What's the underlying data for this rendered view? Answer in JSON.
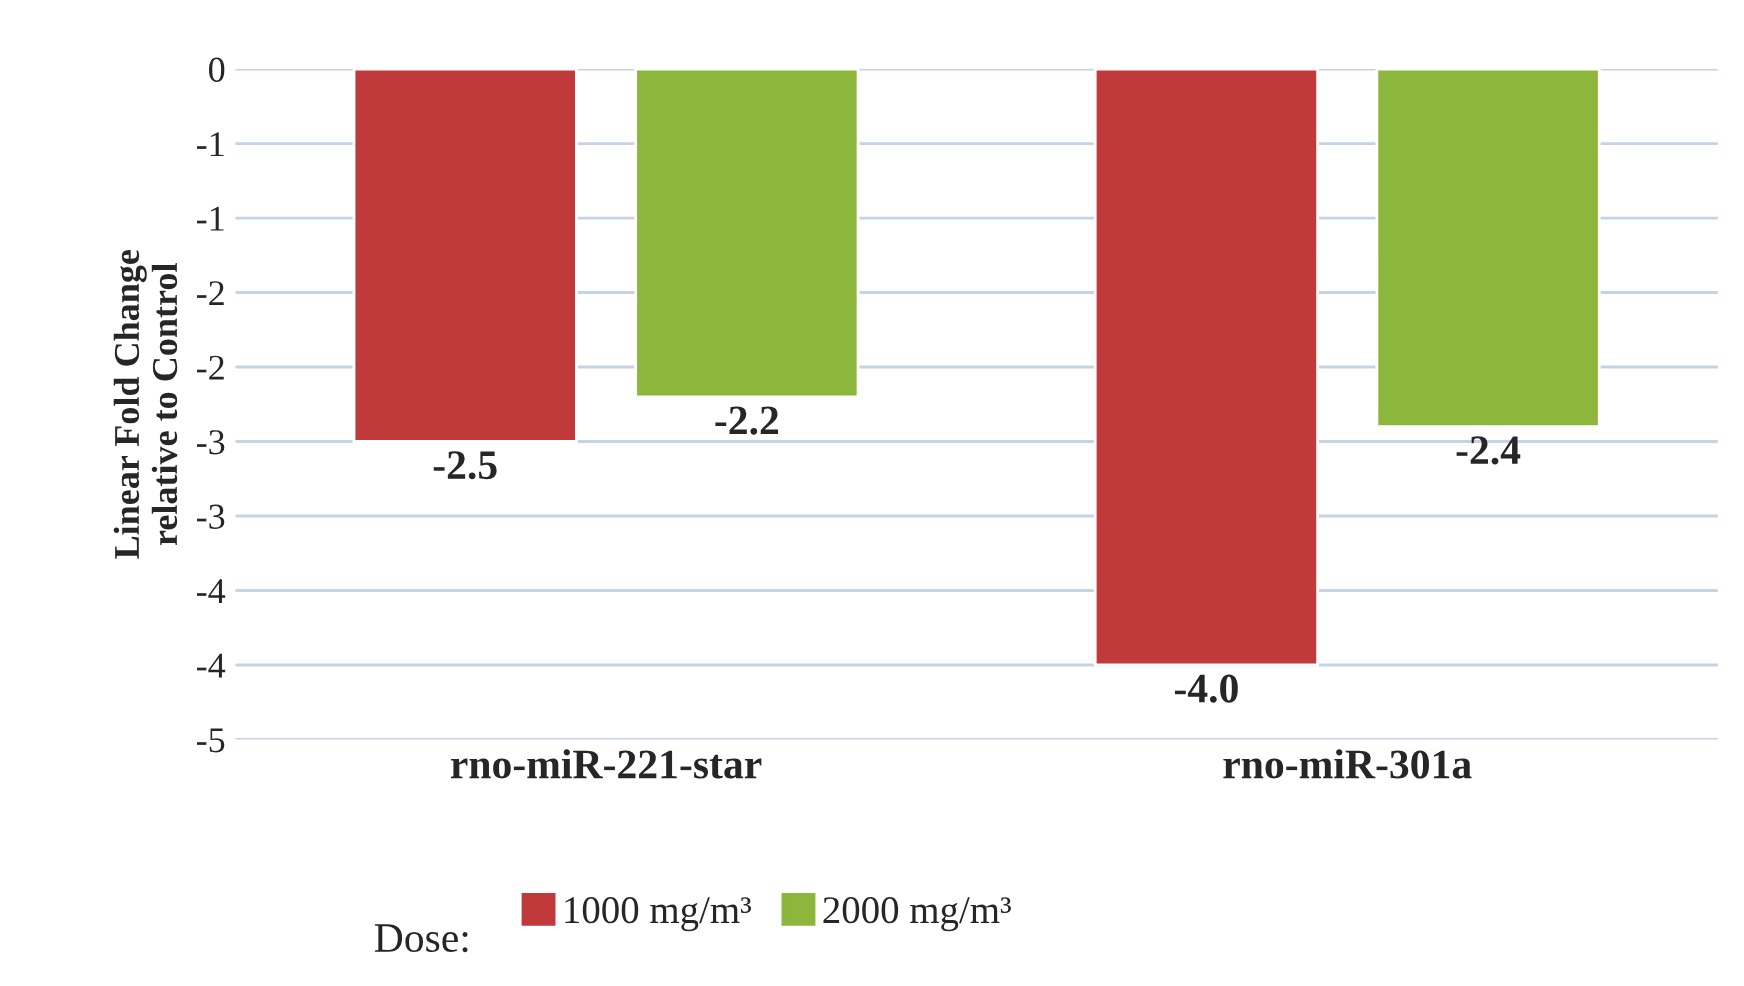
{
  "chart_data": {
    "type": "bar",
    "ylabel": "Linear Fold Change\nrelative to Control",
    "legend_title": "Dose:",
    "categories": [
      "rno-miR-221-star",
      "rno-miR-301a"
    ],
    "series": [
      {
        "name": "1000 mg/m³",
        "color": "#c0393b",
        "values": [
          -2.5,
          -4.0
        ],
        "value_labels": [
          "-2.5",
          "-4.0"
        ]
      },
      {
        "name": "2000 mg/m³",
        "color": "#8db63c",
        "values": [
          -2.2,
          -2.4
        ],
        "value_labels": [
          "-2.2",
          "-2.4"
        ]
      }
    ],
    "ylim": [
      -4.5,
      0
    ],
    "yticks": [
      0,
      {
        "value": -0.5,
        "label": "-1"
      },
      {
        "value": -1,
        "label": "-1"
      },
      {
        "value": -1.5,
        "label": "-2"
      },
      {
        "value": -2,
        "label": "-2"
      },
      {
        "value": -2.5,
        "label": "-3"
      },
      {
        "value": -3,
        "label": "-3"
      },
      {
        "value": -3.5,
        "label": "-4"
      },
      {
        "value": -4,
        "label": "-4"
      },
      {
        "value": -4.5,
        "label": "-5"
      }
    ],
    "grid": "y",
    "legend": "bottom"
  }
}
